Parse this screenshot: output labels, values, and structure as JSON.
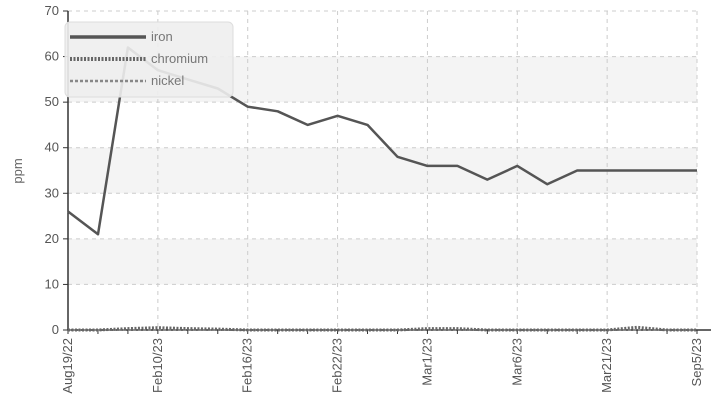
{
  "chart_data": {
    "type": "line",
    "title": "",
    "xlabel": "",
    "ylabel": "ppm",
    "ylim": [
      0,
      70
    ],
    "yticks": [
      0,
      10,
      20,
      30,
      40,
      50,
      60,
      70
    ],
    "grid": true,
    "legend_position": "top-left",
    "categories": [
      "Aug19/22",
      "",
      "",
      "Feb10/23",
      "",
      "",
      "Feb16/23",
      "",
      "",
      "Feb22/23",
      "",
      "",
      "Mar1/23",
      "",
      "",
      "Mar6/23",
      "",
      "",
      "Mar21/23",
      "",
      "",
      "Sep5/23"
    ],
    "series": [
      {
        "name": "iron",
        "color": "#555555",
        "values": [
          26,
          21,
          62,
          57,
          55,
          53,
          49,
          48,
          45,
          47,
          45,
          38,
          36,
          36,
          33,
          36,
          32,
          35,
          35,
          35,
          35,
          35
        ]
      },
      {
        "name": "chromium",
        "color": "#666666",
        "values": [
          0,
          0,
          0.3,
          0.5,
          0.3,
          0.2,
          0,
          0,
          0,
          0,
          0,
          0,
          0.3,
          0.3,
          0,
          0,
          0,
          0,
          0,
          0.6,
          0,
          0
        ]
      },
      {
        "name": "nickel",
        "color": "#888888",
        "values": [
          0,
          0,
          0,
          0,
          0,
          0,
          0,
          0,
          0,
          0,
          0,
          0,
          0,
          0,
          0,
          0,
          0,
          0,
          0,
          0,
          0,
          0
        ]
      }
    ]
  }
}
